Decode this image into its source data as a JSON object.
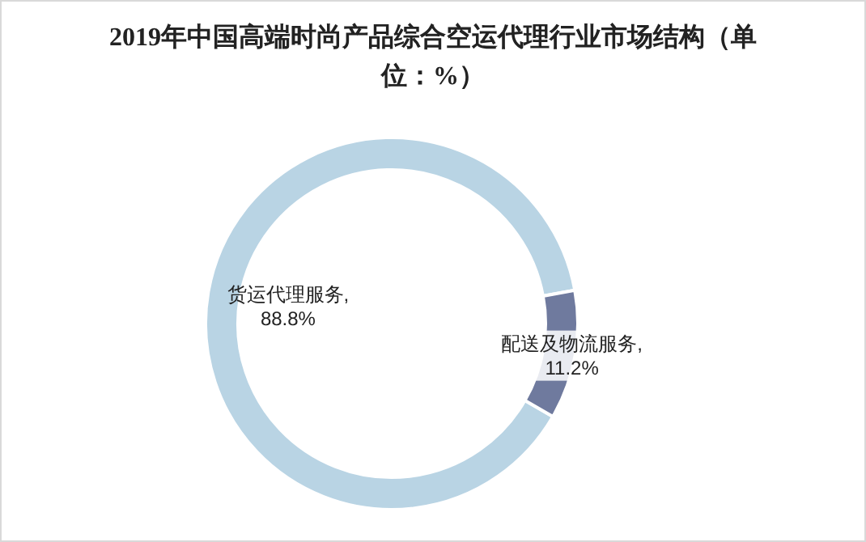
{
  "chart_data": {
    "type": "donut",
    "title": "2019年中国高端时尚产品综合空运代理行业市场结构（单位：%）",
    "categories": [
      "货运代理服务",
      "配送及物流服务"
    ],
    "values": [
      88.8,
      11.2
    ],
    "colors": [
      "#b9d4e4",
      "#6f7a9e"
    ],
    "value_labels": [
      ", 88.8%",
      ", 11.2%"
    ]
  }
}
